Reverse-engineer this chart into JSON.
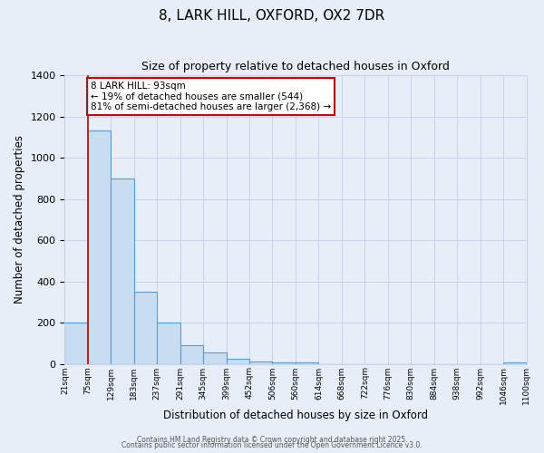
{
  "title": "8, LARK HILL, OXFORD, OX2 7DR",
  "subtitle": "Size of property relative to detached houses in Oxford",
  "xlabel": "Distribution of detached houses by size in Oxford",
  "ylabel": "Number of detached properties",
  "bin_labels": [
    "21sqm",
    "75sqm",
    "129sqm",
    "183sqm",
    "237sqm",
    "291sqm",
    "345sqm",
    "399sqm",
    "452sqm",
    "506sqm",
    "560sqm",
    "614sqm",
    "668sqm",
    "722sqm",
    "776sqm",
    "830sqm",
    "884sqm",
    "938sqm",
    "992sqm",
    "1046sqm",
    "1100sqm"
  ],
  "bar_heights": [
    200,
    1130,
    900,
    350,
    200,
    90,
    55,
    25,
    10,
    5,
    5,
    0,
    0,
    0,
    0,
    0,
    0,
    0,
    0,
    5,
    5
  ],
  "bar_color": "#c9ddf0",
  "bar_edge_color": "#5b9bd5",
  "grid_color": "#c8d4e8",
  "bg_color": "#e8eef8",
  "red_line_x": 1.0,
  "annotation_text": "8 LARK HILL: 93sqm\n← 19% of detached houses are smaller (544)\n81% of semi-detached houses are larger (2,368) →",
  "annotation_box_color": "#ffffff",
  "annotation_border_color": "#cc0000",
  "ylim": [
    0,
    1400
  ],
  "yticks": [
    0,
    200,
    400,
    600,
    800,
    1000,
    1200,
    1400
  ],
  "footer1": "Contains HM Land Registry data © Crown copyright and database right 2025.",
  "footer2": "Contains public sector information licensed under the Open Government Licence v3.0."
}
